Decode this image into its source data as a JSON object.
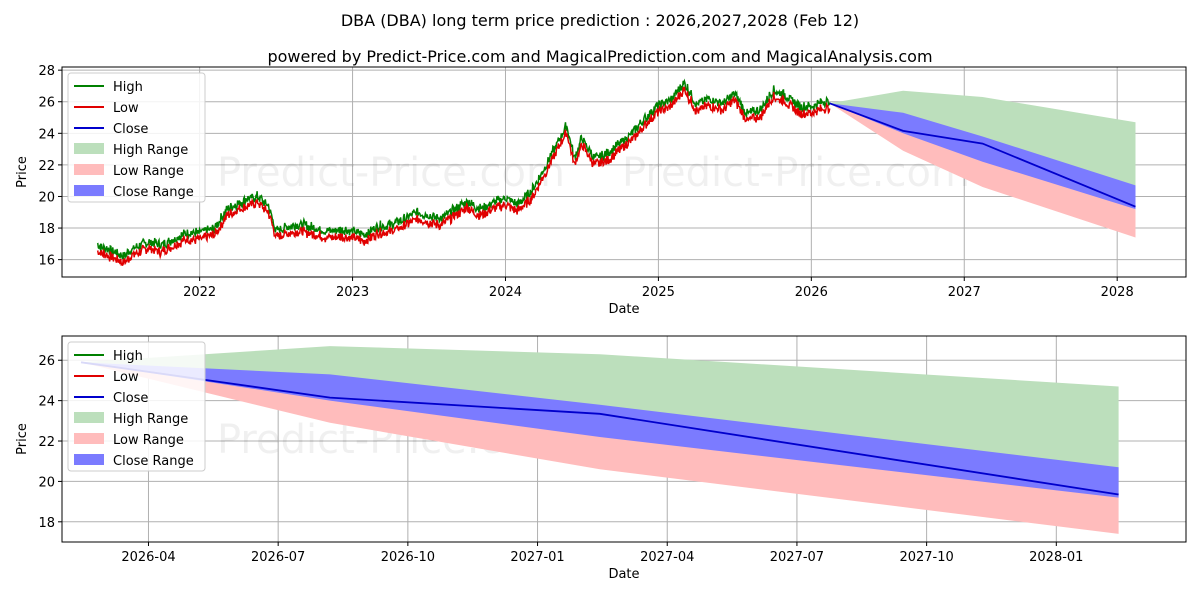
{
  "title": "DBA (DBA) long term price prediction : 2026,2027,2028 (Feb 12)",
  "subtitle": "powered by Predict-Price.com and MagicalPrediction.com and MagicalAnalysis.com",
  "watermark": "Predict-Price.com",
  "colors": {
    "high": "#008000",
    "low": "#e00000",
    "close": "#0000cc",
    "high_range": "#bcdfbc",
    "low_range": "#ffbcbc",
    "close_range": "#7b7bff"
  },
  "legend": [
    {
      "key": "high",
      "label": "High",
      "kind": "line"
    },
    {
      "key": "low",
      "label": "Low",
      "kind": "line"
    },
    {
      "key": "close",
      "label": "Close",
      "kind": "line"
    },
    {
      "key": "high_range",
      "label": "High Range",
      "kind": "patch"
    },
    {
      "key": "low_range",
      "label": "Low Range",
      "kind": "patch"
    },
    {
      "key": "close_range",
      "label": "Close Range",
      "kind": "patch"
    }
  ],
  "chart_data": [
    {
      "type": "line",
      "panel": "history-and-forecast",
      "xlabel": "Date",
      "ylabel": "Price",
      "xlim": [
        2021.1,
        2028.45
      ],
      "ylim": [
        14.9,
        28.2
      ],
      "x_ticks": [
        2022,
        2023,
        2024,
        2025,
        2026,
        2027,
        2028
      ],
      "x_tick_labels": [
        "2022",
        "2023",
        "2024",
        "2025",
        "2026",
        "2027",
        "2028"
      ],
      "y_ticks": [
        16,
        18,
        20,
        22,
        24,
        26,
        28
      ],
      "y_tick_labels": [
        "16",
        "18",
        "20",
        "22",
        "24",
        "26",
        "28"
      ],
      "grid": true,
      "legend_position": "top-left",
      "history_anchors": [
        [
          2021.33,
          16.7
        ],
        [
          2021.42,
          16.4
        ],
        [
          2021.5,
          16.0
        ],
        [
          2021.58,
          16.6
        ],
        [
          2021.67,
          16.9
        ],
        [
          2021.75,
          16.7
        ],
        [
          2021.83,
          17.1
        ],
        [
          2021.92,
          17.5
        ],
        [
          2022.0,
          17.5
        ],
        [
          2022.1,
          17.8
        ],
        [
          2022.18,
          19.0
        ],
        [
          2022.3,
          19.6
        ],
        [
          2022.38,
          19.8
        ],
        [
          2022.45,
          19.2
        ],
        [
          2022.5,
          17.6
        ],
        [
          2022.58,
          17.9
        ],
        [
          2022.67,
          18.0
        ],
        [
          2022.75,
          17.8
        ],
        [
          2022.83,
          17.6
        ],
        [
          2022.92,
          17.7
        ],
        [
          2023.0,
          17.6
        ],
        [
          2023.08,
          17.4
        ],
        [
          2023.17,
          17.9
        ],
        [
          2023.25,
          18.0
        ],
        [
          2023.33,
          18.3
        ],
        [
          2023.42,
          18.8
        ],
        [
          2023.5,
          18.6
        ],
        [
          2023.58,
          18.4
        ],
        [
          2023.67,
          19.0
        ],
        [
          2023.75,
          19.5
        ],
        [
          2023.83,
          19.0
        ],
        [
          2023.92,
          19.4
        ],
        [
          2024.0,
          19.7
        ],
        [
          2024.08,
          19.3
        ],
        [
          2024.17,
          20.1
        ],
        [
          2024.25,
          21.5
        ],
        [
          2024.33,
          23.0
        ],
        [
          2024.4,
          24.3
        ],
        [
          2024.45,
          22.2
        ],
        [
          2024.5,
          23.5
        ],
        [
          2024.58,
          22.2
        ],
        [
          2024.67,
          22.5
        ],
        [
          2024.75,
          23.2
        ],
        [
          2024.83,
          23.8
        ],
        [
          2024.92,
          24.8
        ],
        [
          2025.0,
          25.6
        ],
        [
          2025.08,
          25.9
        ],
        [
          2025.17,
          27.0
        ],
        [
          2025.25,
          25.6
        ],
        [
          2025.33,
          26.0
        ],
        [
          2025.42,
          25.7
        ],
        [
          2025.5,
          26.3
        ],
        [
          2025.58,
          25.0
        ],
        [
          2025.67,
          25.3
        ],
        [
          2025.75,
          26.5
        ],
        [
          2025.83,
          26.2
        ],
        [
          2025.92,
          25.5
        ],
        [
          2026.0,
          25.5
        ],
        [
          2026.08,
          25.8
        ],
        [
          2026.12,
          25.8
        ]
      ],
      "forecast": {
        "x": [
          2026.12,
          2026.6,
          2027.12,
          2028.12
        ],
        "close": [
          25.9,
          24.15,
          23.35,
          19.35
        ],
        "close_range_upper": [
          25.9,
          25.3,
          23.8,
          20.7
        ],
        "close_range_lower": [
          25.9,
          24.0,
          22.2,
          19.2
        ],
        "high_range_upper": [
          25.9,
          26.7,
          26.3,
          24.7
        ],
        "low_range_lower": [
          25.9,
          22.9,
          20.6,
          17.4
        ]
      }
    },
    {
      "type": "line",
      "panel": "forecast-zoom",
      "xlabel": "Date",
      "ylabel": "Price",
      "xlim": [
        2026.0833,
        2028.25
      ],
      "ylim": [
        17.0,
        27.2
      ],
      "x_ticks": [
        2026.25,
        2026.5,
        2026.75,
        2027.0,
        2027.25,
        2027.5,
        2027.75,
        2028.0
      ],
      "x_tick_labels": [
        "2026-04",
        "2026-07",
        "2026-10",
        "2027-01",
        "2027-04",
        "2027-07",
        "2027-10",
        "2028-01"
      ],
      "y_ticks": [
        18,
        20,
        22,
        24,
        26
      ],
      "y_tick_labels": [
        "18",
        "20",
        "22",
        "24",
        "26"
      ],
      "grid": true,
      "legend_position": "top-left",
      "forecast": {
        "x": [
          2026.12,
          2026.6,
          2027.12,
          2028.12
        ],
        "close": [
          25.9,
          24.15,
          23.35,
          19.35
        ],
        "close_range_upper": [
          25.9,
          25.3,
          23.8,
          20.7
        ],
        "close_range_lower": [
          25.9,
          24.0,
          22.2,
          19.2
        ],
        "high_range_upper": [
          25.9,
          26.7,
          26.3,
          24.7
        ],
        "low_range_lower": [
          25.9,
          22.9,
          20.6,
          17.4
        ]
      }
    }
  ]
}
